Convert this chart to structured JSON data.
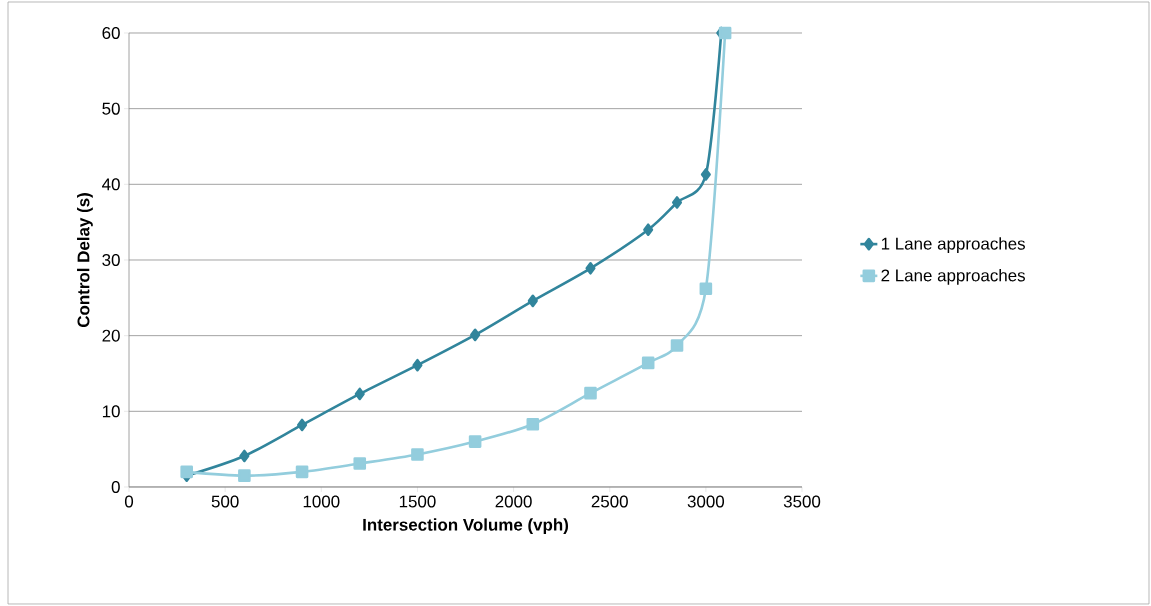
{
  "chart_data": {
    "type": "line",
    "xlabel": "Intersection Volume (vph)",
    "ylabel": "Control Delay (s)",
    "xlim": [
      0,
      3500
    ],
    "xticks": [
      0,
      500,
      1000,
      1500,
      2000,
      2500,
      3000,
      3500
    ],
    "ylim": [
      0,
      60
    ],
    "yticks": [
      0,
      10,
      20,
      30,
      40,
      50,
      60
    ],
    "grid": "y",
    "legend": "right",
    "line_style": "solid",
    "series": [
      {
        "name": "1 Lane approaches",
        "color": "#31859c",
        "marker": "diamond",
        "x": [
          300,
          600,
          900,
          1200,
          1500,
          1800,
          2100,
          2400,
          2700,
          2850,
          3000,
          3080
        ],
        "values": [
          1.5,
          4.1,
          8.2,
          12.3,
          16.1,
          20.1,
          24.6,
          28.9,
          34,
          37.6,
          41.3,
          60
        ]
      },
      {
        "name": "2 Lane approaches",
        "color": "#93cddd",
        "marker": "square",
        "x": [
          300,
          600,
          900,
          1200,
          1500,
          1800,
          2100,
          2400,
          2700,
          2850,
          3000,
          3100
        ],
        "values": [
          2.0,
          1.5,
          2.0,
          3.1,
          4.3,
          6.0,
          8.3,
          12.4,
          16.4,
          18.7,
          26.2,
          60
        ]
      }
    ]
  }
}
